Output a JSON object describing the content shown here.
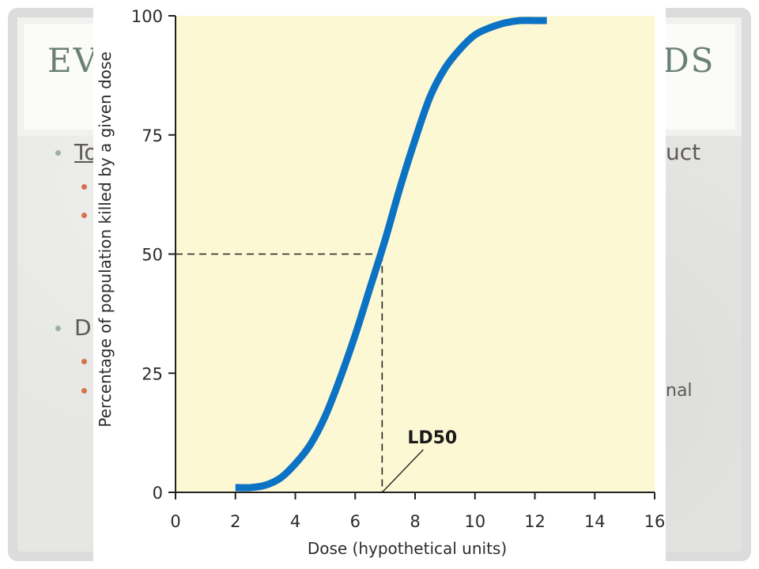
{
  "slide": {
    "title_left": "EV",
    "title_right": "DS",
    "bullet_1": "To",
    "bullet_1_end": "uct",
    "bullet_2": "D",
    "trailing_text": "nal"
  },
  "colors": {
    "plot_background": "#fdf8d4",
    "curve": "#0c72c4",
    "slide_title": "#6a8077"
  },
  "chart_data": {
    "type": "line",
    "xlabel": "Dose (hypothetical units)",
    "ylabel": "Percentage of population killed by a given dose",
    "xlim": [
      0,
      16
    ],
    "ylim": [
      0,
      100
    ],
    "x_ticks": [
      0,
      2,
      4,
      6,
      8,
      10,
      12,
      14,
      16
    ],
    "y_ticks": [
      0,
      25,
      50,
      75,
      100
    ],
    "x_tick_labels": [
      "0",
      "2",
      "4",
      "6",
      "8",
      "10",
      "12",
      "14",
      "16"
    ],
    "y_tick_labels": [
      "0",
      "25",
      "50",
      "75",
      "100"
    ],
    "grid": false,
    "series": [
      {
        "x": [
          2.0,
          2.5,
          3.0,
          3.5,
          4.0,
          4.5,
          5.0,
          5.5,
          6.0,
          6.5,
          7.0,
          7.5,
          8.0,
          8.5,
          9.0,
          9.5,
          10.0,
          10.5,
          11.0,
          11.5,
          12.0,
          12.4
        ],
        "y": [
          1,
          1,
          1.5,
          3,
          6,
          10,
          16,
          24,
          33,
          43,
          53,
          64,
          74,
          83,
          89,
          93,
          96,
          97.5,
          98.5,
          99,
          99,
          99
        ]
      }
    ],
    "reference": {
      "x": 6.9,
      "y": 50
    },
    "annotation": {
      "text": "LD50",
      "x": 6.9,
      "y": 0
    }
  }
}
